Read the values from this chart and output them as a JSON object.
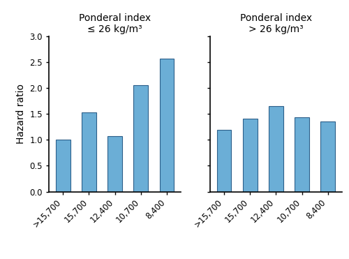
{
  "left_title_line1": "Ponderal index",
  "left_title_line2": "≤ 26 kg/m³",
  "right_title_line1": "Ponderal index",
  "right_title_line2": "> 26 kg/m³",
  "ylabel": "Hazard ratio",
  "categories": [
    ">15,700",
    "15,700",
    "12,400",
    "10,700",
    "8,400"
  ],
  "left_values": [
    1.0,
    1.53,
    1.07,
    2.06,
    2.57
  ],
  "right_values": [
    1.19,
    1.41,
    1.65,
    1.44,
    1.36
  ],
  "bar_color": "#6baed6",
  "bar_edge_color": "#2c5f8a",
  "ylim": [
    0.0,
    3.0
  ],
  "yticks": [
    0.0,
    0.5,
    1.0,
    1.5,
    2.0,
    2.5,
    3.0
  ],
  "bar_width": 0.55,
  "title_fontsize": 10,
  "tick_fontsize": 8.5,
  "ylabel_fontsize": 10,
  "background_color": "#ffffff"
}
